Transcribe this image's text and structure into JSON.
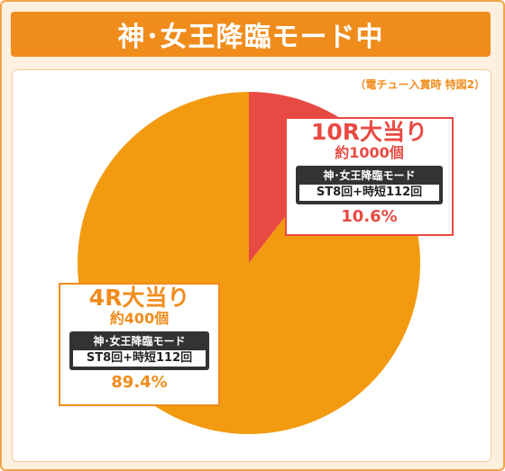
{
  "title": "神･女王降臨モード中",
  "note": "（電チュー入賞時 特図2）",
  "colors": {
    "orange": "#f29a10",
    "red": "#e84a43",
    "border": "#f08c1c"
  },
  "chart_data": {
    "type": "pie",
    "slices": [
      {
        "prize": "10R大当り",
        "balls": "約1000個",
        "mode": "神･女王降臨モード",
        "detail": "ST8回+時短112回",
        "value": 10.6,
        "percent_label": "10.6%",
        "color": "#e84a43"
      },
      {
        "prize": "4R大当り",
        "balls": "約400個",
        "mode": "神･女王降臨モード",
        "detail": "ST8回+時短112回",
        "value": 89.4,
        "percent_label": "89.4%",
        "color": "#f29a10"
      }
    ]
  }
}
